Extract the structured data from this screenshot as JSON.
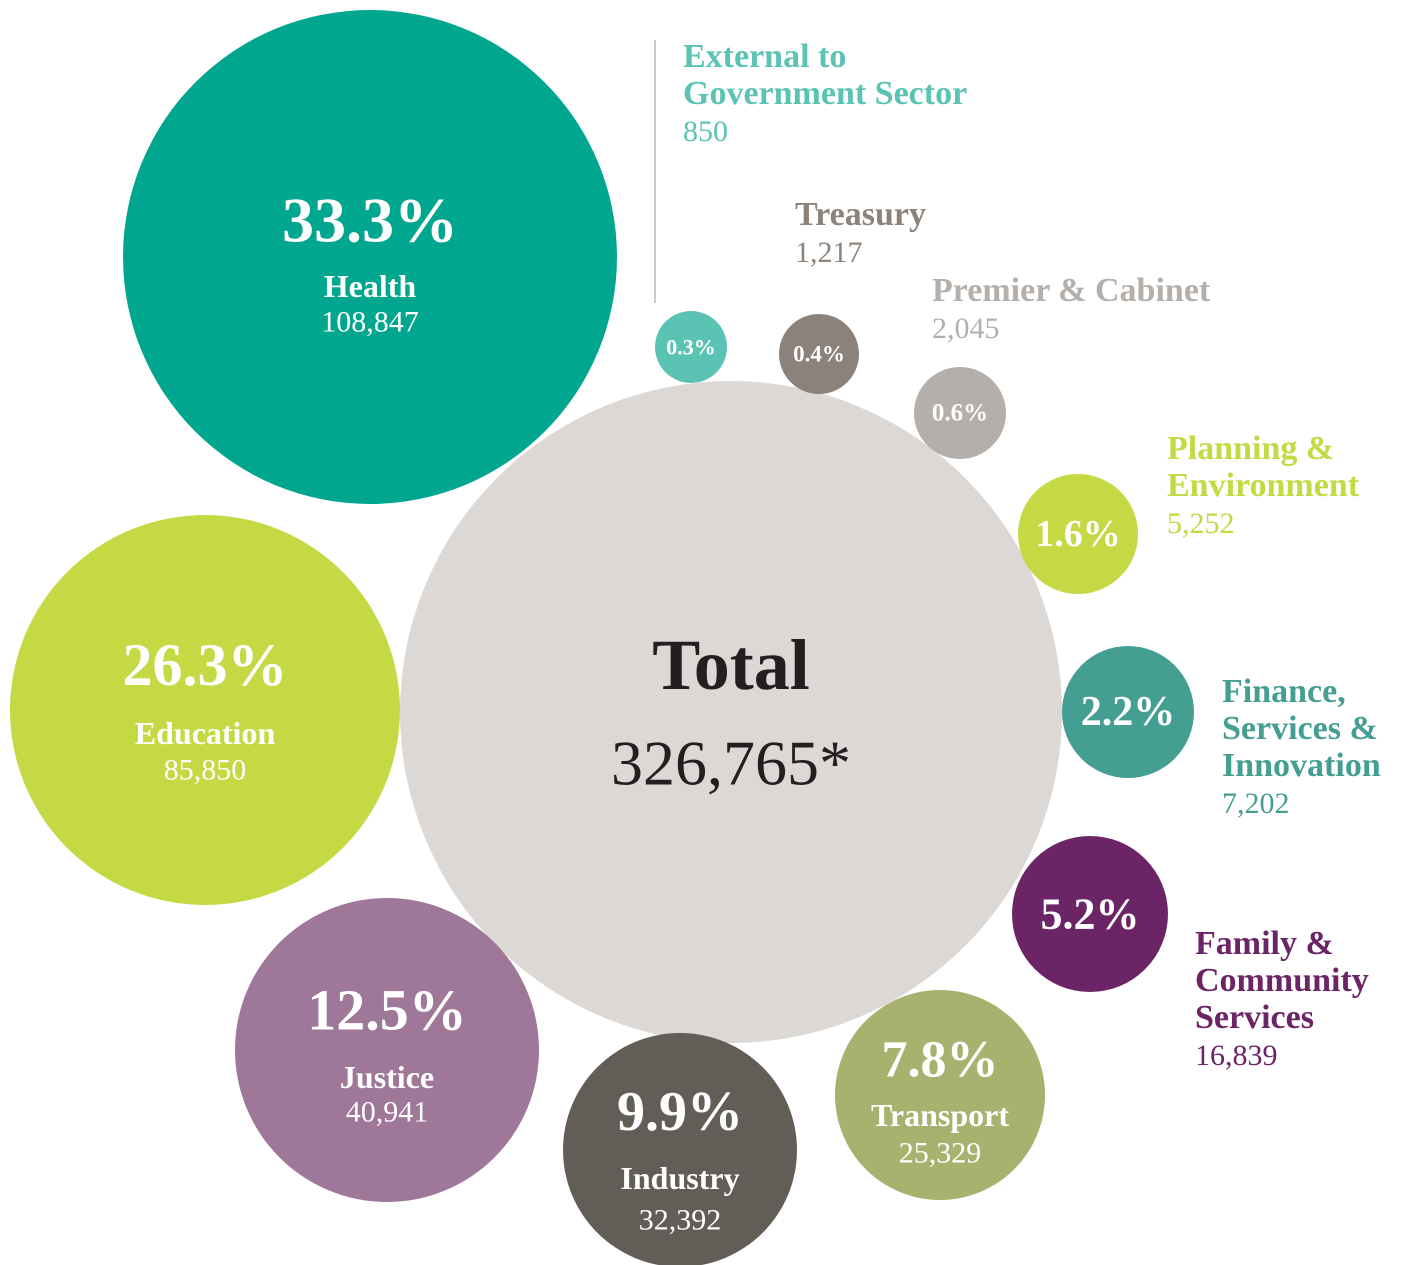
{
  "chart_data": {
    "type": "bubble",
    "categories": [
      "Health",
      "Education",
      "Justice",
      "Industry",
      "Transport",
      "Family & Community Services",
      "Finance, Services & Innovation",
      "Planning & Environment",
      "Premier & Cabinet",
      "Treasury",
      "External to Government Sector"
    ],
    "values": [
      33.3,
      26.3,
      12.5,
      9.9,
      7.8,
      5.2,
      2.2,
      1.6,
      0.6,
      0.4,
      0.3
    ],
    "value_labels": [
      "33.3%",
      "26.3%",
      "12.5%",
      "9.9%",
      "7.8%",
      "5.2%",
      "2.2%",
      "1.6%",
      "0.6%",
      "0.4%",
      "0.3%"
    ],
    "counts": [
      108847,
      85850,
      40941,
      32392,
      25329,
      16839,
      7202,
      5252,
      2045,
      1217,
      850
    ],
    "count_labels": [
      "108,847",
      "85,850",
      "40,941",
      "32,392",
      "25,329",
      "16,839",
      "7,202",
      "5,252",
      "2,045",
      "1,217",
      "850"
    ],
    "colors": [
      "#00a78e",
      "#c4d943",
      "#9e7799",
      "#625e57",
      "#a8b16e",
      "#6b2567",
      "#449e92",
      "#c4d943",
      "#b5afab",
      "#8c827c",
      "#5bc3b4"
    ],
    "total": {
      "name": "Total",
      "value": 326765,
      "label": "326,765*",
      "color": "#dbd8d5"
    }
  }
}
